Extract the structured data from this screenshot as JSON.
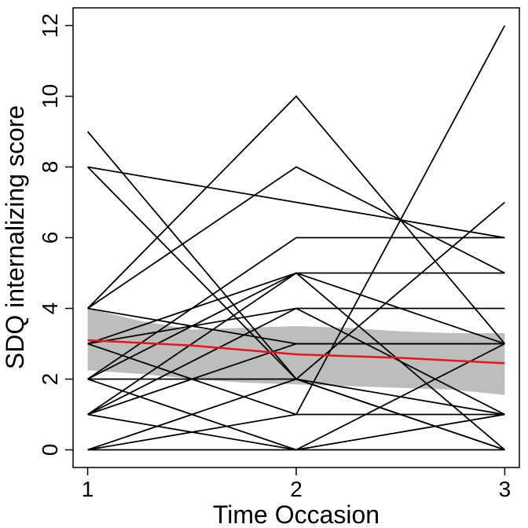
{
  "chart_data": {
    "type": "line",
    "title": "",
    "xlabel": "Time Occasion",
    "ylabel": "SDQ internalizing score",
    "x": [
      1,
      2,
      3
    ],
    "xlim": [
      0.93,
      3.07
    ],
    "ylim": [
      -0.5,
      12.5
    ],
    "xticks": [
      1,
      2,
      3
    ],
    "yticks": [
      0,
      2,
      4,
      6,
      8,
      10,
      12
    ],
    "grid": false,
    "individual_trajectories": [
      [
        9,
        2,
        1
      ],
      [
        8,
        7,
        6
      ],
      [
        8,
        2,
        0
      ],
      [
        4,
        8,
        5
      ],
      [
        4,
        10,
        3
      ],
      [
        4,
        3,
        3
      ],
      [
        3,
        5,
        0
      ],
      [
        3,
        1,
        12
      ],
      [
        3,
        4,
        4
      ],
      [
        2,
        6,
        6
      ],
      [
        2,
        2,
        7
      ],
      [
        2,
        5,
        5
      ],
      [
        2,
        0,
        3
      ],
      [
        1,
        5,
        3
      ],
      [
        1,
        4,
        1
      ],
      [
        1,
        0,
        1
      ],
      [
        1,
        3,
        3
      ],
      [
        0,
        2,
        0
      ],
      [
        0,
        1,
        1
      ],
      [
        0,
        0,
        0
      ]
    ],
    "mean_trend": {
      "name": "mean",
      "color": "#e8141e",
      "x": [
        1,
        1.5,
        2,
        2.5,
        3
      ],
      "values": [
        3.1,
        2.95,
        2.7,
        2.6,
        2.45
      ]
    },
    "confidence_band": {
      "color": "#bdbdbd",
      "x": [
        1,
        1.25,
        1.5,
        1.75,
        2,
        2.25,
        2.5,
        2.75,
        3
      ],
      "lower": [
        2.25,
        2.15,
        2.0,
        1.9,
        1.85,
        1.8,
        1.75,
        1.7,
        1.55
      ],
      "upper": [
        4.0,
        3.65,
        3.4,
        3.45,
        3.5,
        3.45,
        3.35,
        3.3,
        3.3
      ]
    },
    "line_color": "#000000"
  }
}
